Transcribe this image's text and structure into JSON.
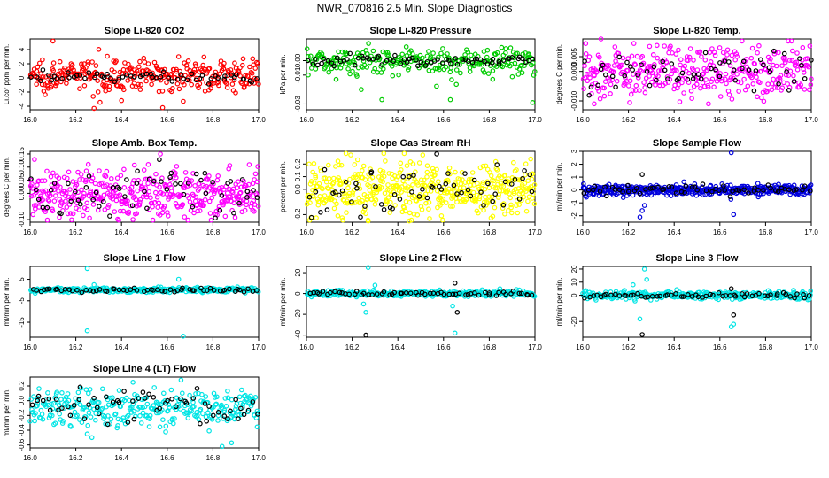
{
  "figure": {
    "title": "NWR_070816  2.5 Min. Slope Diagnostics"
  },
  "chart_data": [
    {
      "type": "scatter",
      "title": "Slope Li-820 CO2",
      "ylabel": "Li.cor ppm per min.",
      "color": "#ff0000",
      "xlim": [
        16.0,
        17.0
      ],
      "xticks": [
        "16.0",
        "16.2",
        "16.4",
        "16.6",
        "16.8",
        "17.0"
      ],
      "ylim": [
        -4.5,
        5.5
      ],
      "yticks": [
        "-4",
        "-2",
        "0",
        "2",
        "4"
      ],
      "series": [
        {
          "color": "#ff0000",
          "center": 0.4,
          "spread": 1.1,
          "n": 320,
          "outliers": [
            [
              16.1,
              5.2
            ],
            [
              16.28,
              -4.3
            ],
            [
              16.4,
              -3.2
            ],
            [
              16.58,
              -4.2
            ],
            [
              16.65,
              3.0
            ]
          ]
        },
        {
          "color": "#000000",
          "center": 0.1,
          "spread": 0.35,
          "n": 60
        }
      ]
    },
    {
      "type": "scatter",
      "title": "Slope Li-820 Pressure",
      "ylabel": "kPa per min.",
      "color": "#00cc00",
      "xlim": [
        16.0,
        17.0
      ],
      "xticks": [
        "16.0",
        "16.2",
        "16.4",
        "16.6",
        "16.8",
        "17.0"
      ],
      "ylim": [
        -0.034,
        0.015
      ],
      "yticks": [
        "-0.03",
        "-0.01",
        "0.00"
      ],
      "series": [
        {
          "color": "#00cc00",
          "center": 0.0,
          "spread": 0.005,
          "n": 260,
          "outliers": [
            [
              16.33,
              -0.027
            ],
            [
              16.63,
              -0.027
            ],
            [
              16.99,
              -0.029
            ],
            [
              16.13,
              -0.013
            ],
            [
              16.24,
              -0.02
            ]
          ]
        },
        {
          "color": "#000000",
          "center": 0.0,
          "spread": 0.002,
          "n": 70
        }
      ]
    },
    {
      "type": "scatter",
      "title": "Slope Li-820 Temp.",
      "ylabel": "degrees C per min.",
      "color": "#ff00ff",
      "xlim": [
        16.0,
        17.0
      ],
      "xticks": [
        "16.0",
        "16.2",
        "16.4",
        "16.6",
        "16.8",
        "17.0"
      ],
      "ylim": [
        -0.013,
        0.011
      ],
      "yticks": [
        "-0.010",
        "0.000",
        "0.005"
      ],
      "series": [
        {
          "color": "#ff00ff",
          "center": 0.0,
          "spread": 0.0045,
          "n": 360,
          "outliers": [
            [
              16.08,
              0.011
            ],
            [
              16.05,
              -0.011
            ],
            [
              16.55,
              -0.011
            ]
          ]
        },
        {
          "color": "#000000",
          "center": 0.0,
          "spread": 0.003,
          "n": 60
        }
      ]
    },
    {
      "type": "scatter",
      "title": "Slope Amb. Box Temp.",
      "ylabel": "degrees C per min.",
      "color": "#ff00ff",
      "xlim": [
        16.0,
        17.0
      ],
      "xticks": [
        "16.0",
        "16.2",
        "16.4",
        "16.6",
        "16.8",
        "17.0"
      ],
      "ylim": [
        -0.11,
        0.16
      ],
      "yticks": [
        "-0.10",
        "0.00",
        "0.05",
        "0.10",
        "0.15"
      ],
      "series": [
        {
          "color": "#ff00ff",
          "center": 0.0,
          "spread": 0.05,
          "n": 420,
          "outliers": [
            [
              16.57,
              0.15
            ],
            [
              16.45,
              -0.1
            ]
          ]
        },
        {
          "color": "#000000",
          "center": 0.0,
          "spread": 0.05,
          "n": 60
        }
      ]
    },
    {
      "type": "scatter",
      "title": "Slope Gas Stream RH",
      "ylabel": "percent per min.",
      "color": "#ffff00",
      "xlim": [
        16.0,
        17.0
      ],
      "xticks": [
        "16.0",
        "16.2",
        "16.4",
        "16.6",
        "16.8",
        "17.0"
      ],
      "ylim": [
        -0.26,
        0.3
      ],
      "yticks": [
        "-0.2",
        "0.0",
        "0.1",
        "0.2"
      ],
      "series": [
        {
          "color": "#ffff00",
          "center": 0.0,
          "spread": 0.1,
          "n": 480,
          "outliers": [
            [
              16.27,
              -0.25
            ],
            [
              16.45,
              -0.25
            ]
          ]
        },
        {
          "color": "#000000",
          "center": 0.0,
          "spread": 0.1,
          "n": 60,
          "outliers": [
            [
              16.57,
              0.28
            ]
          ]
        }
      ]
    },
    {
      "type": "scatter",
      "title": "Slope Sample Flow",
      "ylabel": "ml/min per min.",
      "color": "#0000dd",
      "xlim": [
        16.0,
        17.0
      ],
      "xticks": [
        "16.0",
        "16.2",
        "16.4",
        "16.6",
        "16.8",
        "17.0"
      ],
      "ylim": [
        -2.5,
        3.0
      ],
      "yticks": [
        "-2",
        "-1",
        "0",
        "1",
        "2",
        "3"
      ],
      "series": [
        {
          "color": "#0000dd",
          "center": 0.0,
          "spread": 0.2,
          "n": 420,
          "outliers": [
            [
              16.25,
              -2.1
            ],
            [
              16.26,
              -1.6
            ],
            [
              16.65,
              2.9
            ],
            [
              16.66,
              -1.9
            ],
            [
              16.27,
              -1.2
            ]
          ]
        },
        {
          "color": "#000000",
          "center": 0.0,
          "spread": 0.2,
          "n": 60,
          "outliers": [
            [
              16.26,
              1.2
            ]
          ]
        }
      ]
    },
    {
      "type": "scatter",
      "title": "Slope Line 1 Flow",
      "ylabel": "ml/min per min.",
      "color": "#00e5e5",
      "xlim": [
        16.0,
        17.0
      ],
      "xticks": [
        "16.0",
        "16.2",
        "16.4",
        "16.6",
        "16.8",
        "17.0"
      ],
      "ylim": [
        -22,
        11
      ],
      "yticks": [
        "-15",
        "-5",
        "5"
      ],
      "series": [
        {
          "color": "#00e5e5",
          "center": 0.0,
          "spread": 0.6,
          "n": 300,
          "outliers": [
            [
              16.25,
              10.0
            ],
            [
              16.25,
              -19.0
            ],
            [
              16.67,
              -21.5
            ],
            [
              16.65,
              5.0
            ],
            [
              16.28,
              2.5
            ]
          ]
        },
        {
          "color": "#000000",
          "center": 0.0,
          "spread": 0.5,
          "n": 60
        }
      ]
    },
    {
      "type": "scatter",
      "title": "Slope Line 2 Flow",
      "ylabel": "ml/min per min.",
      "color": "#00e5e5",
      "xlim": [
        16.0,
        17.0
      ],
      "xticks": [
        "16.0",
        "16.2",
        "16.4",
        "16.6",
        "16.8",
        "17.0"
      ],
      "ylim": [
        -42,
        26
      ],
      "yticks": [
        "-40",
        "-20",
        "0",
        "20"
      ],
      "series": [
        {
          "color": "#00e5e5",
          "center": 0.0,
          "spread": 1.5,
          "n": 300,
          "outliers": [
            [
              16.27,
              25
            ],
            [
              16.25,
              -10
            ],
            [
              16.26,
              -18
            ],
            [
              16.65,
              -38
            ],
            [
              16.64,
              -12
            ],
            [
              16.3,
              8
            ]
          ]
        },
        {
          "color": "#000000",
          "center": 0.0,
          "spread": 1.0,
          "n": 60,
          "outliers": [
            [
              16.26,
              -40
            ],
            [
              16.66,
              -18
            ],
            [
              16.65,
              10
            ]
          ]
        }
      ]
    },
    {
      "type": "scatter",
      "title": "Slope Line 3 Flow",
      "ylabel": "ml/min per min.",
      "color": "#00e5e5",
      "xlim": [
        16.0,
        17.0
      ],
      "xticks": [
        "16.0",
        "16.2",
        "16.4",
        "16.6",
        "16.8",
        "17.0"
      ],
      "ylim": [
        -32,
        22
      ],
      "yticks": [
        "-20",
        "0",
        "10",
        "20"
      ],
      "series": [
        {
          "color": "#00e5e5",
          "center": 0.0,
          "spread": 1.5,
          "n": 320,
          "outliers": [
            [
              16.27,
              20
            ],
            [
              16.25,
              -18
            ],
            [
              16.66,
              -22
            ],
            [
              16.65,
              -24
            ],
            [
              16.28,
              12
            ],
            [
              16.22,
              8
            ]
          ]
        },
        {
          "color": "#000000",
          "center": 0.0,
          "spread": 1.0,
          "n": 60,
          "outliers": [
            [
              16.26,
              -30
            ],
            [
              16.66,
              -15
            ],
            [
              16.65,
              5
            ]
          ]
        }
      ]
    },
    {
      "type": "scatter",
      "title": "Slope Line 4 (LT) Flow",
      "ylabel": "ml/min per min.",
      "color": "#00e5e5",
      "xlim": [
        16.0,
        17.0
      ],
      "xticks": [
        "16.0",
        "16.2",
        "16.4",
        "16.6",
        "16.8",
        "17.0"
      ],
      "ylim": [
        -0.64,
        0.32
      ],
      "yticks": [
        "-0.6",
        "-0.4",
        "-0.2",
        "0.0",
        "0.2"
      ],
      "series": [
        {
          "color": "#00e5e5",
          "center": -0.1,
          "spread": 0.13,
          "n": 320,
          "outliers": [
            [
              16.84,
              -0.62
            ],
            [
              16.25,
              -0.45
            ],
            [
              16.27,
              -0.5
            ]
          ]
        },
        {
          "color": "#000000",
          "center": -0.08,
          "spread": 0.1,
          "n": 60
        }
      ]
    }
  ]
}
